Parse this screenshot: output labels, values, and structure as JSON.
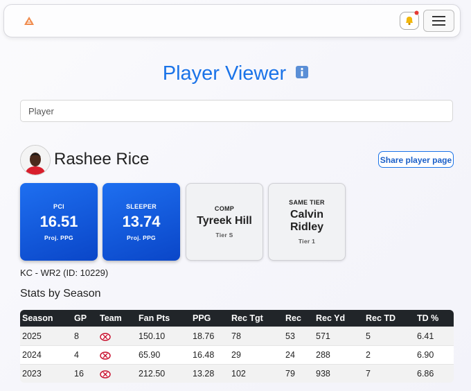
{
  "header": {
    "title": "Player Viewer"
  },
  "search": {
    "placeholder": "Player"
  },
  "player": {
    "name": "Rashee Rice",
    "share_button": "Share player page",
    "meta": "KC - WR2 (ID: 10229)"
  },
  "cards": [
    {
      "label": "PCI",
      "value": "16.51",
      "sub": "Proj. PPG"
    },
    {
      "label": "SLEEPER",
      "value": "13.74",
      "sub": "Proj. PPG"
    },
    {
      "label": "COMP",
      "value": "Tyreek Hill",
      "sub": "Tier S"
    },
    {
      "label": "SAME TIER",
      "value": "Calvin Ridley",
      "sub": "Tier 1"
    }
  ],
  "stats": {
    "title": "Stats by Season",
    "columns": [
      "Season",
      "GP",
      "Team",
      "Fan Pts",
      "PPG",
      "Rec Tgt",
      "Rec",
      "Rec Yd",
      "Rec TD",
      "TD %"
    ],
    "rows": [
      {
        "season": "2025",
        "gp": "8",
        "fan_pts": "150.10",
        "ppg": "18.76",
        "rec_tgt": "78",
        "rec": "53",
        "rec_yd": "571",
        "rec_td": "5",
        "td_pct": "6.41"
      },
      {
        "season": "2024",
        "gp": "4",
        "fan_pts": "65.90",
        "ppg": "16.48",
        "rec_tgt": "29",
        "rec": "24",
        "rec_yd": "288",
        "rec_td": "2",
        "td_pct": "6.90"
      },
      {
        "season": "2023",
        "gp": "16",
        "fan_pts": "212.50",
        "ppg": "13.28",
        "rec_tgt": "102",
        "rec": "79",
        "rec_yd": "938",
        "rec_td": "7",
        "td_pct": "6.86"
      }
    ]
  }
}
